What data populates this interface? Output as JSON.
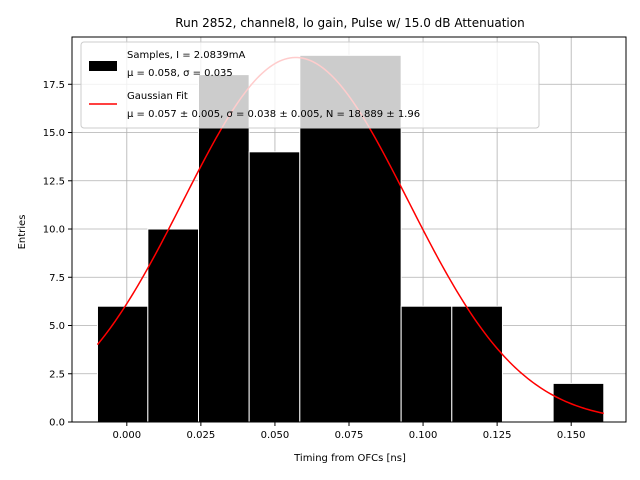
{
  "chart_data": {
    "type": "bar",
    "title": "Run 2852, channel8, lo gain, Pulse w/ 15.0 dB Attenuation",
    "xlabel": "Timing from OFCs [ns]",
    "ylabel": "Entries",
    "xlim": [
      -0.0185,
      0.1685
    ],
    "ylim": [
      0,
      19.95
    ],
    "xticks": [
      0.0,
      0.025,
      0.05,
      0.075,
      0.1,
      0.125,
      0.15
    ],
    "xtick_labels": [
      "0.000",
      "0.025",
      "0.050",
      "0.075",
      "0.100",
      "0.125",
      "0.150"
    ],
    "yticks": [
      0.0,
      2.5,
      5.0,
      7.5,
      10.0,
      12.5,
      15.0,
      17.5
    ],
    "ytick_labels": [
      "0.0",
      "2.5",
      "5.0",
      "7.5",
      "10.0",
      "12.5",
      "15.0",
      "17.5"
    ],
    "grid": true,
    "bins": [
      {
        "x0": -0.0099,
        "x1": 0.0071,
        "value": 6
      },
      {
        "x0": 0.0071,
        "x1": 0.0242,
        "value": 10
      },
      {
        "x0": 0.0242,
        "x1": 0.0413,
        "value": 18
      },
      {
        "x0": 0.0413,
        "x1": 0.0584,
        "value": 14
      },
      {
        "x0": 0.0584,
        "x1": 0.0926,
        "value": 19
      },
      {
        "x0": 0.0926,
        "x1": 0.1097,
        "value": 6
      },
      {
        "x0": 0.1097,
        "x1": 0.1268,
        "value": 6
      },
      {
        "x0": 0.1439,
        "x1": 0.161,
        "value": 2
      }
    ],
    "fit": {
      "mu": 0.057,
      "sigma": 0.038,
      "N": 18.889,
      "x_start": -0.0099,
      "x_end": 0.161
    },
    "colors": {
      "bars": "#000000",
      "fit": "#ff0000",
      "grid": "#b0b0b0"
    },
    "legend": {
      "placement": "top-left",
      "entries": [
        {
          "type": "patch",
          "line1": "Samples, I = 2.0839mA",
          "line2": "μ = 0.058, σ = 0.035"
        },
        {
          "type": "line",
          "line1": "Gaussian Fit",
          "line2": "μ = 0.057 ± 0.005, σ = 0.038 ± 0.005, N = 18.889 ± 1.96"
        }
      ]
    }
  }
}
